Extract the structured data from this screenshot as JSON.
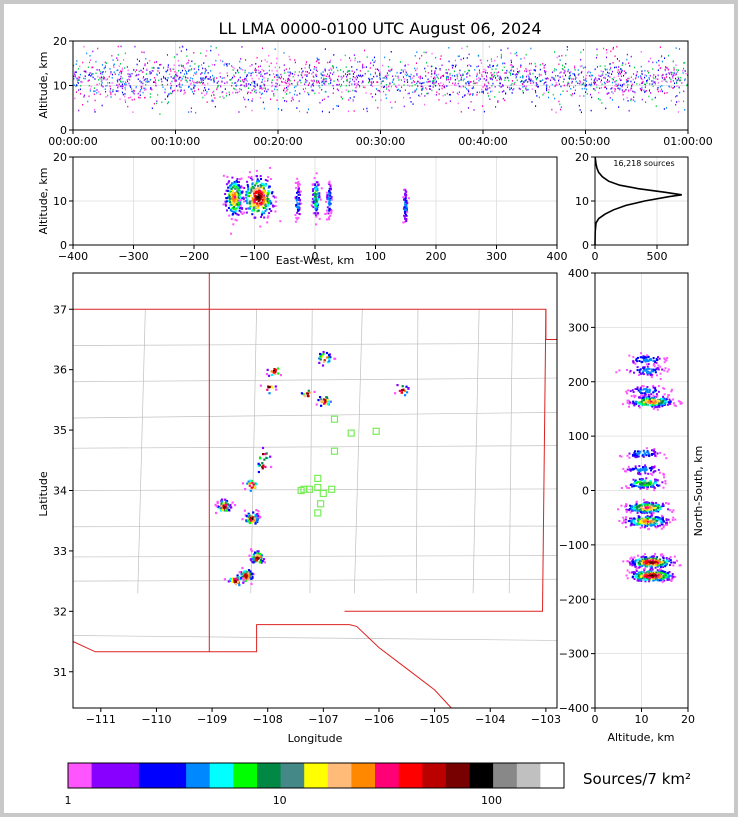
{
  "title": "LL LMA 0000-0100 UTC August 06, 2024",
  "colors": {
    "scatter": [
      "#ff55ff",
      "#8800ff",
      "#0000ff",
      "#0088ff",
      "#00ffff",
      "#00ff00",
      "#008844",
      "#448888",
      "#ffff00",
      "#ffbb77",
      "#ff8800",
      "#ff0077",
      "#ff0000",
      "#bb0000",
      "#770000",
      "#000000"
    ],
    "state_border": "#dd2222",
    "county_border": "#c0c0c0",
    "station": "#77ee55"
  },
  "chart_data": [
    {
      "panel": "altitude-time",
      "type": "scatter",
      "ylabel": "Altitude, km",
      "ylim": [
        0,
        20
      ],
      "yticks": [
        "0",
        "10",
        "20"
      ],
      "xticks": [
        "00:00:00",
        "00:10:00",
        "00:20:00",
        "00:30:00",
        "00:40:00",
        "00:50:00",
        "01:00:00"
      ],
      "xlim_minutes": [
        0,
        60
      ],
      "altitude_band_km": [
        8,
        15
      ],
      "grid": true
    },
    {
      "panel": "east-west-altitude",
      "type": "heatmap",
      "xlabel": "East-West, km",
      "ylabel": "Altitude, km",
      "xlim": [
        -400,
        400
      ],
      "ylim": [
        0,
        20
      ],
      "xticks": [
        "−400",
        "−300",
        "−200",
        "−100",
        "0",
        "100",
        "200",
        "300",
        "400"
      ],
      "yticks": [
        "0",
        "10",
        "20"
      ],
      "clusters": [
        {
          "x": -135,
          "alt": 11,
          "spread_x": 12,
          "density": "high"
        },
        {
          "x": -95,
          "alt": 11,
          "spread_x": 20,
          "density": "very high"
        },
        {
          "x": -30,
          "alt": 10,
          "spread_x": 4,
          "density": "low"
        },
        {
          "x": 0,
          "alt": 11,
          "spread_x": 5,
          "density": "medium"
        },
        {
          "x": 22,
          "alt": 10.5,
          "spread_x": 4,
          "density": "low"
        },
        {
          "x": 148,
          "alt": 9,
          "spread_x": 3,
          "density": "low"
        }
      ]
    },
    {
      "panel": "altitude-histogram",
      "type": "line",
      "annotation": "16,218 sources",
      "xlim": [
        0,
        750
      ],
      "ylim": [
        0,
        20
      ],
      "xticks": [
        "0",
        "500"
      ],
      "yticks": [
        "0",
        "10",
        "20"
      ],
      "profile": [
        [
          0,
          0
        ],
        [
          2,
          3
        ],
        [
          8,
          5
        ],
        [
          30,
          6
        ],
        [
          80,
          7
        ],
        [
          150,
          8
        ],
        [
          250,
          9
        ],
        [
          400,
          10
        ],
        [
          600,
          11
        ],
        [
          700,
          11.4
        ],
        [
          560,
          12
        ],
        [
          350,
          12.8
        ],
        [
          200,
          13.6
        ],
        [
          110,
          14.5
        ],
        [
          60,
          15.5
        ],
        [
          30,
          16.5
        ],
        [
          15,
          17.5
        ],
        [
          8,
          18.5
        ],
        [
          3,
          19.5
        ],
        [
          1,
          20
        ]
      ]
    },
    {
      "panel": "plan-view",
      "type": "scatter",
      "xlabel": "Longitude",
      "ylabel": "Latitude",
      "xlim": [
        -111.5,
        -102.8
      ],
      "ylim": [
        30.4,
        37.6
      ],
      "xticks": [
        "−111",
        "−110",
        "−109",
        "−108",
        "−107",
        "−106",
        "−105",
        "−104",
        "−103"
      ],
      "yticks": [
        "31",
        "32",
        "33",
        "34",
        "35",
        "36",
        "37"
      ],
      "clusters": [
        {
          "lon": -108.8,
          "lat": 33.75,
          "n": 60
        },
        {
          "lon": -108.3,
          "lat": 33.55,
          "n": 60
        },
        {
          "lon": -108.2,
          "lat": 32.9,
          "n": 60
        },
        {
          "lon": -108.4,
          "lat": 32.6,
          "n": 70
        },
        {
          "lon": -108.6,
          "lat": 32.52,
          "n": 40
        },
        {
          "lon": -108.3,
          "lat": 34.1,
          "n": 20
        },
        {
          "lon": -108.1,
          "lat": 34.4,
          "n": 10
        },
        {
          "lon": -108.1,
          "lat": 34.6,
          "n": 10
        },
        {
          "lon": -107.0,
          "lat": 36.2,
          "n": 25
        },
        {
          "lon": -107.0,
          "lat": 35.5,
          "n": 25
        },
        {
          "lon": -107.9,
          "lat": 36.0,
          "n": 15
        },
        {
          "lon": -108.0,
          "lat": 35.72,
          "n": 10
        },
        {
          "lon": -107.3,
          "lat": 35.6,
          "n": 10
        },
        {
          "lon": -105.6,
          "lat": 35.67,
          "n": 15
        }
      ],
      "stations": [
        [
          -106.8,
          35.18
        ],
        [
          -106.5,
          34.95
        ],
        [
          -106.05,
          34.98
        ],
        [
          -106.8,
          34.65
        ],
        [
          -107.35,
          34.02
        ],
        [
          -107.25,
          34.02
        ],
        [
          -107.1,
          34.2
        ],
        [
          -107.1,
          34.05
        ],
        [
          -107.0,
          33.95
        ],
        [
          -106.85,
          34.02
        ],
        [
          -107.05,
          33.78
        ],
        [
          -107.1,
          33.63
        ],
        [
          -107.4,
          34.0
        ]
      ]
    },
    {
      "panel": "north-south-altitude",
      "type": "heatmap",
      "xlabel": "Altitude, km",
      "ylabel": "North-South, km",
      "xlim": [
        0,
        20
      ],
      "ylim": [
        -400,
        400
      ],
      "xticks": [
        "0",
        "10",
        "20"
      ],
      "yticks": [
        "−400",
        "−300",
        "−200",
        "−100",
        "0",
        "100",
        "200",
        "300",
        "400"
      ],
      "clusters": [
        {
          "ns": 242,
          "alt": 11,
          "density": "low"
        },
        {
          "ns": 222,
          "alt": 11,
          "density": "low"
        },
        {
          "ns": 165,
          "alt": 12,
          "density": "high"
        },
        {
          "ns": 185,
          "alt": 11,
          "density": "low"
        },
        {
          "ns": 70,
          "alt": 10,
          "density": "low"
        },
        {
          "ns": 40,
          "alt": 10,
          "density": "low"
        },
        {
          "ns": 15,
          "alt": 10.5,
          "density": "medium"
        },
        {
          "ns": -30,
          "alt": 11,
          "density": "high"
        },
        {
          "ns": -55,
          "alt": 11,
          "density": "high"
        },
        {
          "ns": -130,
          "alt": 12,
          "density": "very high"
        },
        {
          "ns": -155,
          "alt": 12,
          "density": "very high"
        }
      ]
    }
  ],
  "colorbar": {
    "label": "Sources/7 km²",
    "tick_labels": [
      "1",
      "10",
      "100"
    ],
    "tick_values": [
      1,
      10,
      100
    ],
    "vmin": 1,
    "vmax": 220,
    "colors": [
      "#ff55ff",
      "#8800ff",
      "#8800ff",
      "#0000ff",
      "#0000ff",
      "#0088ff",
      "#00ffff",
      "#00ff00",
      "#008844",
      "#448888",
      "#ffff00",
      "#ffbb77",
      "#ff8800",
      "#ff0077",
      "#ff0000",
      "#bb0000",
      "#770000",
      "#000000",
      "#888888",
      "#c0c0c0",
      "#ffffff"
    ]
  }
}
